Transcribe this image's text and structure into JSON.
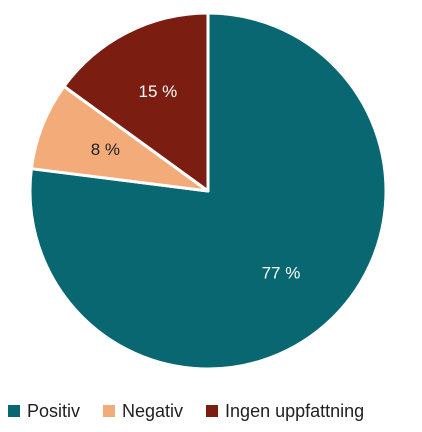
{
  "chart_data": {
    "type": "pie",
    "title": "",
    "start_angle_deg": 0,
    "direction": "clockwise",
    "slices": [
      {
        "name": "Positiv",
        "value": 77,
        "label": "77 %",
        "color": "#086771",
        "label_color": "#ffffff"
      },
      {
        "name": "Negativ",
        "value": 8,
        "label": "8 %",
        "color": "#F4AB7A",
        "label_color": "#1f1f1f"
      },
      {
        "name": "Ingen uppfattning",
        "value": 15,
        "label": "15 %",
        "color": "#7C1D12",
        "label_color": "#ffffff"
      }
    ],
    "legend": {
      "position": "bottom",
      "items": [
        "Positiv",
        "Negativ",
        "Ingen uppfattning"
      ]
    }
  }
}
